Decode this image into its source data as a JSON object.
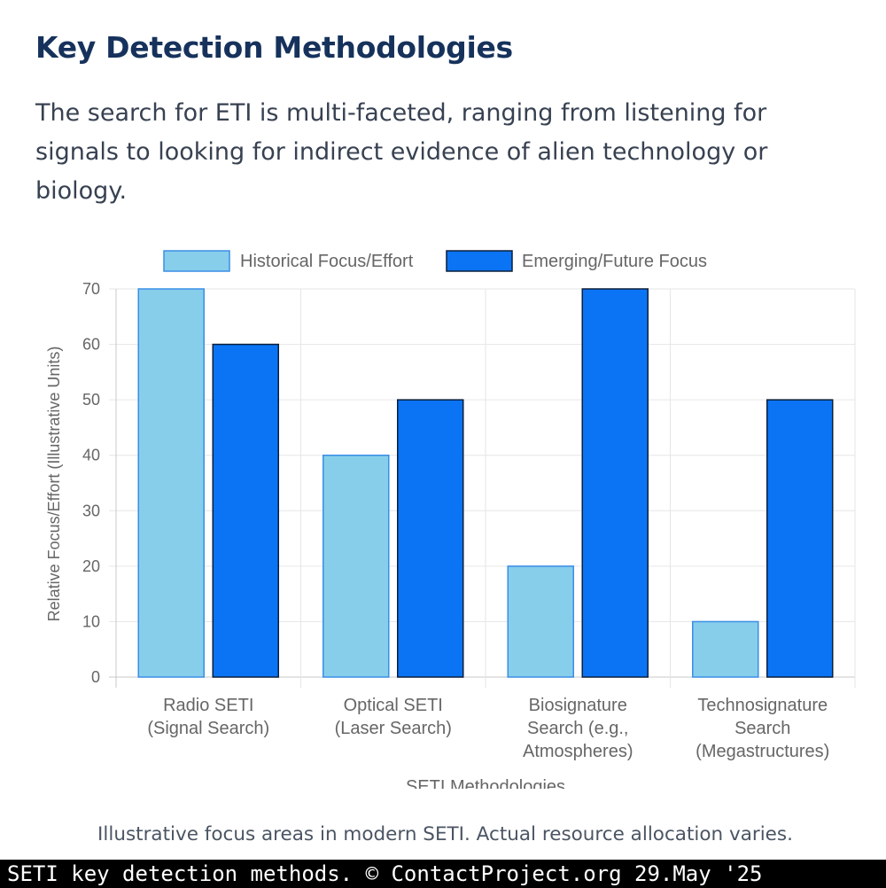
{
  "section": {
    "heading": "Key Detection Methodologies",
    "intro": "The search for ETI is multi-faceted, ranging from listening for signals to looking for indirect evidence of alien technology or biology.",
    "caption": "Illustrative focus areas in modern SETI. Actual resource allocation varies."
  },
  "footer": {
    "text": "SETI key detection methods. © ContactProject.org 29.May '25"
  },
  "chart_data": {
    "type": "bar",
    "title": "",
    "xlabel": "SETI Methodologies",
    "ylabel": "Relative Focus/Effort (Illustrative Units)",
    "ylim": [
      0,
      70
    ],
    "yticks": [
      0,
      10,
      20,
      30,
      40,
      50,
      60,
      70
    ],
    "grid": true,
    "legend_position": "top-center",
    "categories": [
      [
        "Radio SETI",
        "(Signal Search)"
      ],
      [
        "Optical SETI",
        "(Laser Search)"
      ],
      [
        "Biosignature",
        "Search (e.g.,",
        "Atmospheres)"
      ],
      [
        "Technosignature",
        "Search",
        "(Megastructures)"
      ]
    ],
    "series": [
      {
        "name": "Historical Focus/Effort",
        "values": [
          70,
          40,
          20,
          10
        ],
        "color": "#87ceeb",
        "border": "#3a8ee6"
      },
      {
        "name": "Emerging/Future Focus",
        "values": [
          60,
          50,
          70,
          50
        ],
        "color": "#0a74f5",
        "border": "#0b1f3a"
      }
    ]
  }
}
